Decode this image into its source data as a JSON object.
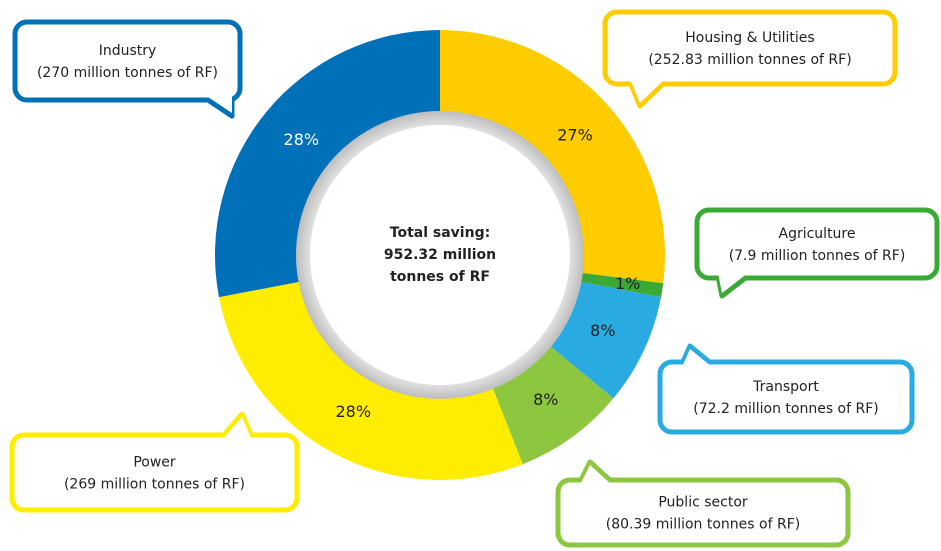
{
  "chart_data": {
    "type": "pie",
    "donut": true,
    "categories": [
      "Housing & Utilities",
      "Agriculture",
      "Transport",
      "Public sector",
      "Power",
      "Industry"
    ],
    "values": [
      27,
      1,
      8,
      8,
      28,
      28
    ],
    "value_labels": [
      "27%",
      "1%",
      "8%",
      "8%",
      "28%",
      "28%"
    ],
    "colors": [
      "#ffcc00",
      "#3aaa35",
      "#29abe2",
      "#8dc63f",
      "#ffed00",
      "#0070b8"
    ],
    "callouts": [
      "(252.83 million tonnes of RF)",
      "(7.9 million tonnes of RF)",
      "(72.2 million tonnes of RF)",
      "(80.39 million tonnes of RF)",
      "(269 million tonnes of RF)",
      "(270 million tonnes of RF)"
    ],
    "center_text": [
      "Total saving:",
      "952.32 million",
      "tonnes of RF"
    ]
  }
}
